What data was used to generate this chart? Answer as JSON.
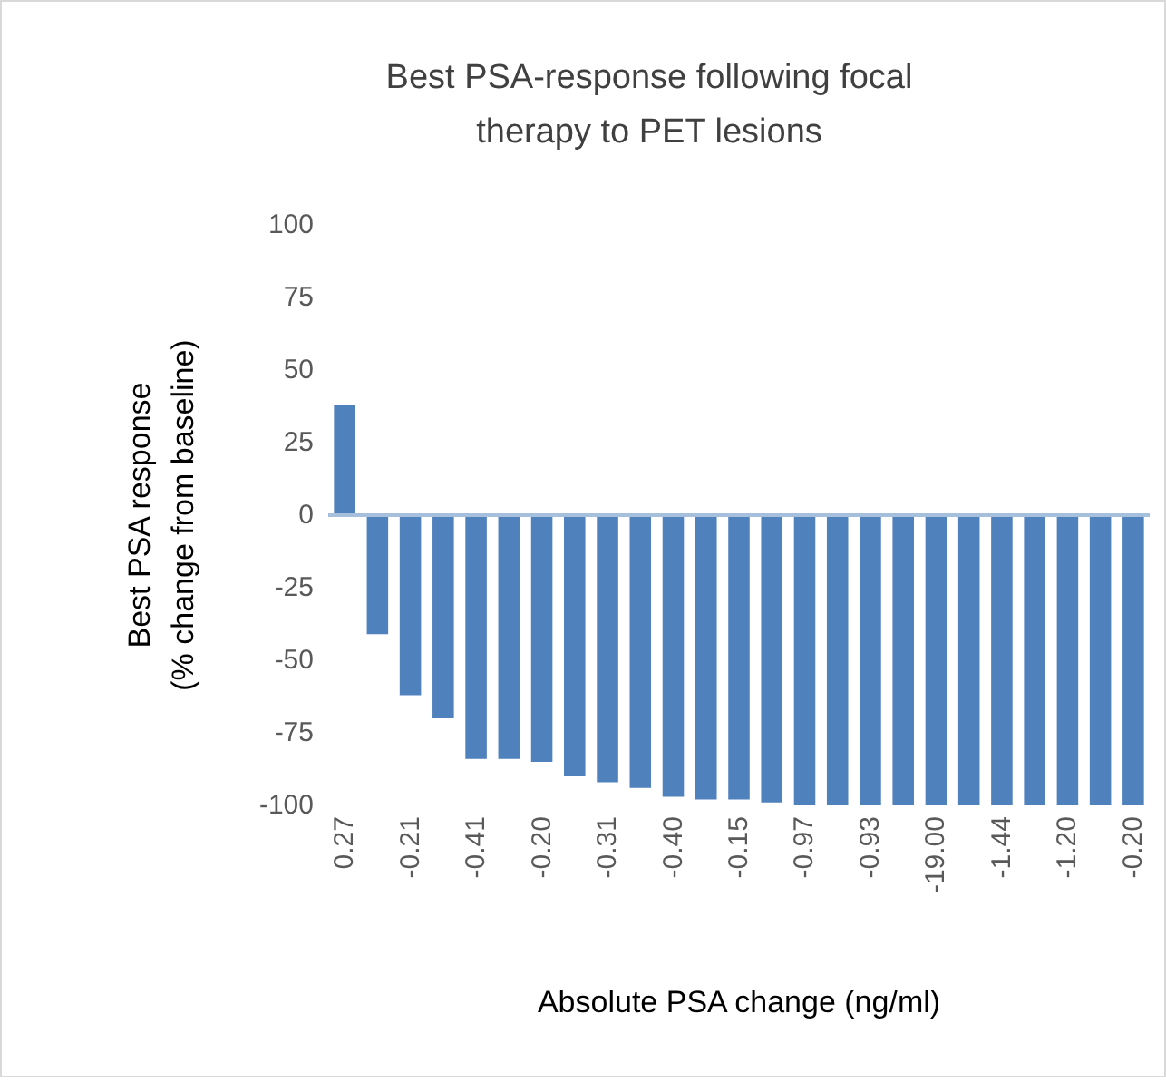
{
  "chart_data": {
    "type": "bar",
    "title": "Best PSA-response following focal\ntherapy to PET lesions",
    "xlabel": "Absolute PSA change (ng/ml)",
    "ylabel": "Best PSA response\n(% change from baseline)",
    "categories": [
      "0.27",
      null,
      "-0.21",
      null,
      "-0.41",
      null,
      "-0.20",
      null,
      "-0.31",
      null,
      "-0.40",
      null,
      "-0.15",
      null,
      "-0.97",
      null,
      "-0.93",
      null,
      "-19.00",
      null,
      "-1.44",
      null,
      "-1.20",
      null,
      "-0.20"
    ],
    "values": [
      38,
      -41,
      -62,
      -70,
      -84,
      -84,
      -85,
      -90,
      -92,
      -94,
      -97,
      -98,
      -98,
      -99,
      -100,
      -100,
      -100,
      -100,
      -100,
      -100,
      -100,
      -100,
      -100,
      -100,
      -100
    ],
    "color": "#4f81bd",
    "ylim": [
      -100,
      100
    ],
    "yticks": [
      -100,
      -75,
      -50,
      -25,
      0,
      25,
      50,
      75,
      100
    ],
    "grid": false,
    "ref_lines": [
      {
        "axis": "y",
        "value": 0,
        "color": "#a6bfdd"
      }
    ]
  }
}
